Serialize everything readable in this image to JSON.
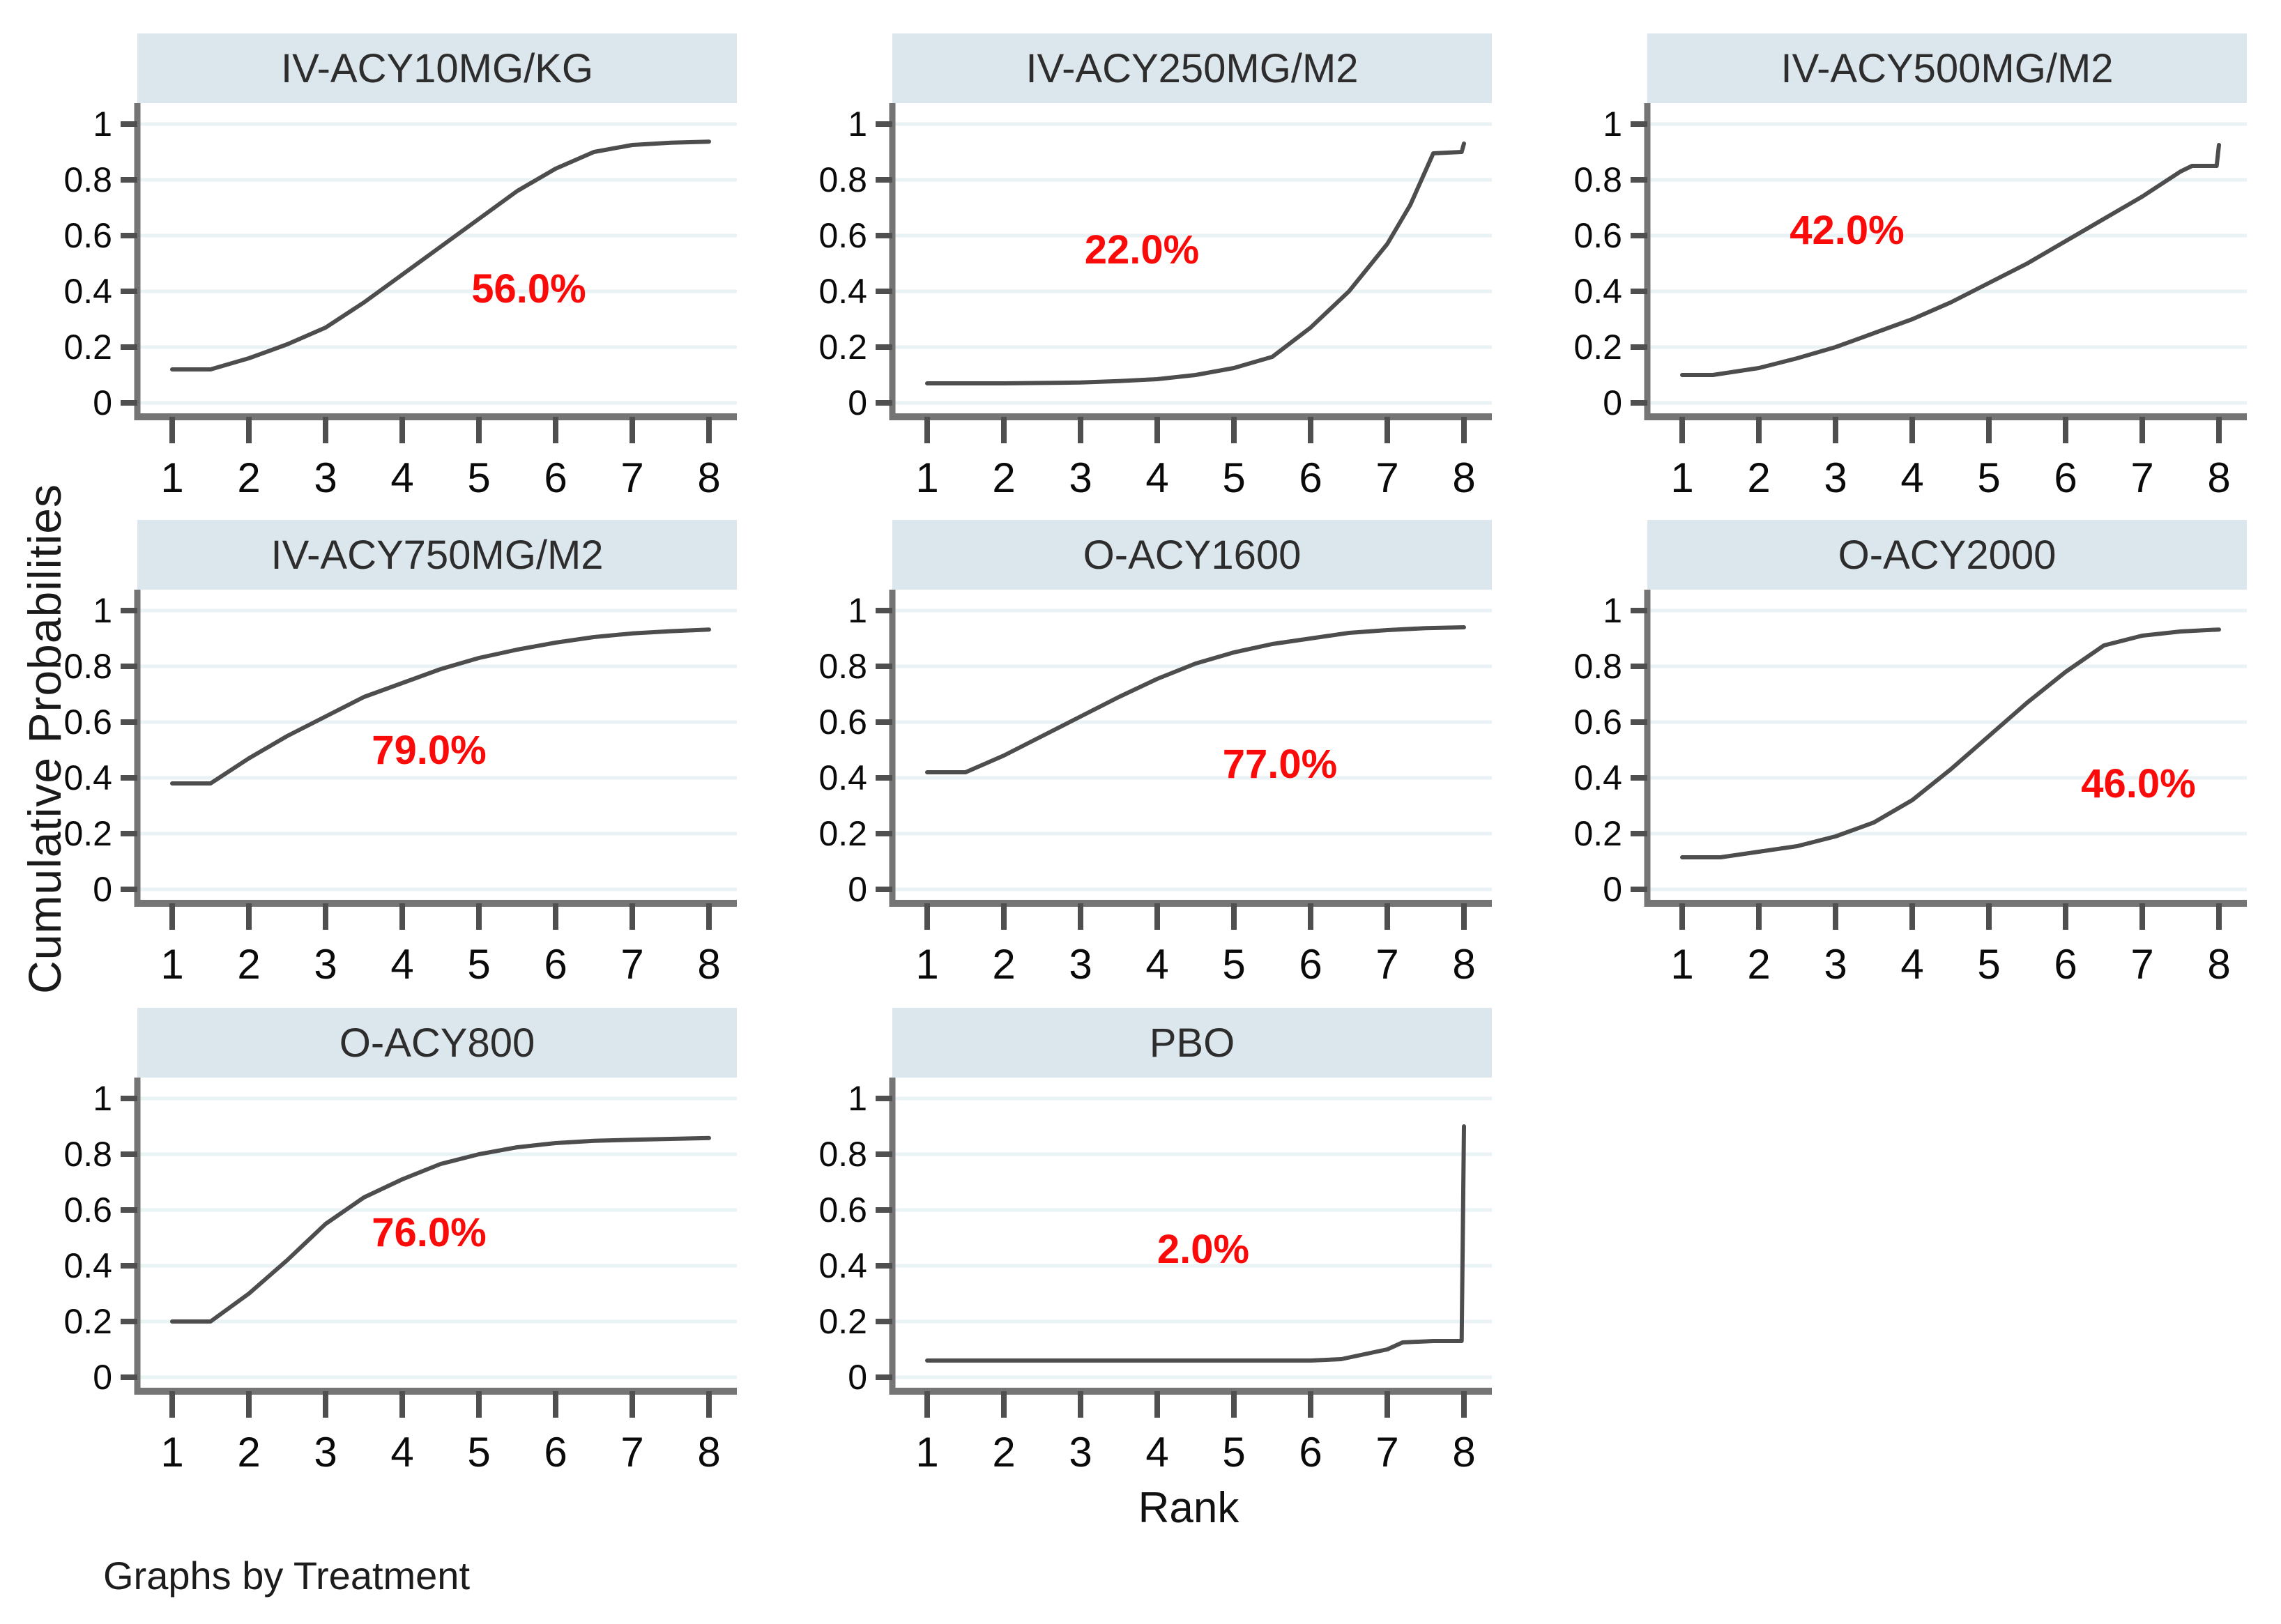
{
  "figure": {
    "ylabel": "Cumulative Probabilities",
    "xlabel": "Rank",
    "caption": "Graphs by Treatment"
  },
  "colors": {
    "header_band": "#dce6ed",
    "curve": "#4d4d4d",
    "grid": "#e9f2f4",
    "axis": "#757575",
    "tick": "#4f4f4f",
    "tick_label": "#0a0a0a",
    "title_text": "#2d2d2d",
    "annotation": "#fb0a0a",
    "background": "#ffffff"
  },
  "axes": {
    "x_ticks": [
      1,
      2,
      3,
      4,
      5,
      6,
      7,
      8
    ],
    "x_tick_labels": [
      "1",
      "2",
      "3",
      "4",
      "5",
      "6",
      "7",
      "8"
    ],
    "y_ticks": [
      0,
      0.2,
      0.4,
      0.6,
      0.8,
      1
    ],
    "y_tick_labels": [
      "0",
      "0.2",
      "0.4",
      "0.6",
      "0.8",
      "1"
    ],
    "ylim": [
      0,
      1
    ],
    "xlim": [
      1,
      8
    ],
    "grid": "on",
    "legend": "none"
  },
  "chart_data": {
    "type": "line",
    "layout": "small-multiples 3x3, 8 panels, by Treatment",
    "xlabel": "Rank",
    "ylabel": "Cumulative Probabilities",
    "panels": [
      {
        "title": "IV-ACY10MG/KG",
        "annotation": "56.0%",
        "annotation_xy": [
          5.65,
          0.41
        ],
        "points": [
          [
            1,
            0.12
          ],
          [
            1.5,
            0.12
          ],
          [
            2,
            0.16
          ],
          [
            2.5,
            0.21
          ],
          [
            3,
            0.27
          ],
          [
            3.5,
            0.36
          ],
          [
            4,
            0.46
          ],
          [
            4.5,
            0.56
          ],
          [
            5,
            0.66
          ],
          [
            5.5,
            0.76
          ],
          [
            6,
            0.84
          ],
          [
            6.5,
            0.9
          ],
          [
            7,
            0.925
          ],
          [
            7.5,
            0.933
          ],
          [
            8,
            0.937
          ]
        ]
      },
      {
        "title": "IV-ACY250MG/M2",
        "annotation": "22.0%",
        "annotation_xy": [
          3.8,
          0.55
        ],
        "points": [
          [
            1,
            0.07
          ],
          [
            2,
            0.07
          ],
          [
            3,
            0.073
          ],
          [
            3.5,
            0.078
          ],
          [
            4,
            0.085
          ],
          [
            4.5,
            0.1
          ],
          [
            5,
            0.125
          ],
          [
            5.5,
            0.165
          ],
          [
            6,
            0.27
          ],
          [
            6.5,
            0.4
          ],
          [
            7,
            0.57
          ],
          [
            7.3,
            0.71
          ],
          [
            7.6,
            0.895
          ],
          [
            7.97,
            0.9
          ],
          [
            8,
            0.93
          ]
        ]
      },
      {
        "title": "IV-ACY500MG/M2",
        "annotation": "42.0%",
        "annotation_xy": [
          3.15,
          0.62
        ],
        "points": [
          [
            1,
            0.1
          ],
          [
            1.4,
            0.1
          ],
          [
            2,
            0.125
          ],
          [
            2.5,
            0.16
          ],
          [
            3,
            0.2
          ],
          [
            3.5,
            0.25
          ],
          [
            4,
            0.3
          ],
          [
            4.5,
            0.36
          ],
          [
            5,
            0.43
          ],
          [
            5.5,
            0.5
          ],
          [
            6,
            0.58
          ],
          [
            6.5,
            0.66
          ],
          [
            7,
            0.74
          ],
          [
            7.5,
            0.83
          ],
          [
            7.65,
            0.85
          ],
          [
            7.97,
            0.85
          ],
          [
            8,
            0.925
          ]
        ]
      },
      {
        "title": "IV-ACY750MG/M2",
        "annotation": "79.0%",
        "annotation_xy": [
          4.35,
          0.5
        ],
        "points": [
          [
            1,
            0.38
          ],
          [
            1.5,
            0.38
          ],
          [
            2,
            0.47
          ],
          [
            2.5,
            0.55
          ],
          [
            3,
            0.62
          ],
          [
            3.5,
            0.69
          ],
          [
            4,
            0.74
          ],
          [
            4.5,
            0.79
          ],
          [
            5,
            0.83
          ],
          [
            5.5,
            0.86
          ],
          [
            6,
            0.885
          ],
          [
            6.5,
            0.905
          ],
          [
            7,
            0.918
          ],
          [
            7.5,
            0.926
          ],
          [
            8,
            0.932
          ]
        ]
      },
      {
        "title": "O-ACY1600",
        "annotation": "77.0%",
        "annotation_xy": [
          5.6,
          0.45
        ],
        "points": [
          [
            1,
            0.42
          ],
          [
            1.5,
            0.42
          ],
          [
            2,
            0.48
          ],
          [
            2.5,
            0.55
          ],
          [
            3,
            0.62
          ],
          [
            3.5,
            0.69
          ],
          [
            4,
            0.755
          ],
          [
            4.5,
            0.81
          ],
          [
            5,
            0.85
          ],
          [
            5.5,
            0.88
          ],
          [
            6,
            0.9
          ],
          [
            6.5,
            0.92
          ],
          [
            7,
            0.93
          ],
          [
            7.5,
            0.937
          ],
          [
            8,
            0.94
          ]
        ]
      },
      {
        "title": "O-ACY2000",
        "annotation": "46.0%",
        "annotation_xy": [
          6.95,
          0.38
        ],
        "points": [
          [
            1,
            0.115
          ],
          [
            1.5,
            0.115
          ],
          [
            2,
            0.135
          ],
          [
            2.5,
            0.155
          ],
          [
            3,
            0.19
          ],
          [
            3.5,
            0.24
          ],
          [
            4,
            0.32
          ],
          [
            4.5,
            0.43
          ],
          [
            5,
            0.55
          ],
          [
            5.5,
            0.67
          ],
          [
            6,
            0.78
          ],
          [
            6.5,
            0.875
          ],
          [
            7,
            0.91
          ],
          [
            7.5,
            0.925
          ],
          [
            8,
            0.932
          ]
        ]
      },
      {
        "title": "O-ACY800",
        "annotation": "76.0%",
        "annotation_xy": [
          4.35,
          0.52
        ],
        "points": [
          [
            1,
            0.2
          ],
          [
            1.5,
            0.2
          ],
          [
            2,
            0.3
          ],
          [
            2.5,
            0.42
          ],
          [
            3,
            0.55
          ],
          [
            3.5,
            0.645
          ],
          [
            4,
            0.71
          ],
          [
            4.5,
            0.765
          ],
          [
            5,
            0.8
          ],
          [
            5.5,
            0.825
          ],
          [
            6,
            0.84
          ],
          [
            6.5,
            0.848
          ],
          [
            7,
            0.852
          ],
          [
            8,
            0.858
          ]
        ]
      },
      {
        "title": "PBO",
        "annotation": "2.0%",
        "annotation_xy": [
          4.6,
          0.46
        ],
        "points": [
          [
            1,
            0.06
          ],
          [
            6,
            0.06
          ],
          [
            6.4,
            0.065
          ],
          [
            7,
            0.1
          ],
          [
            7.2,
            0.125
          ],
          [
            7.6,
            0.13
          ],
          [
            7.97,
            0.13
          ],
          [
            8,
            0.9
          ]
        ]
      }
    ]
  }
}
